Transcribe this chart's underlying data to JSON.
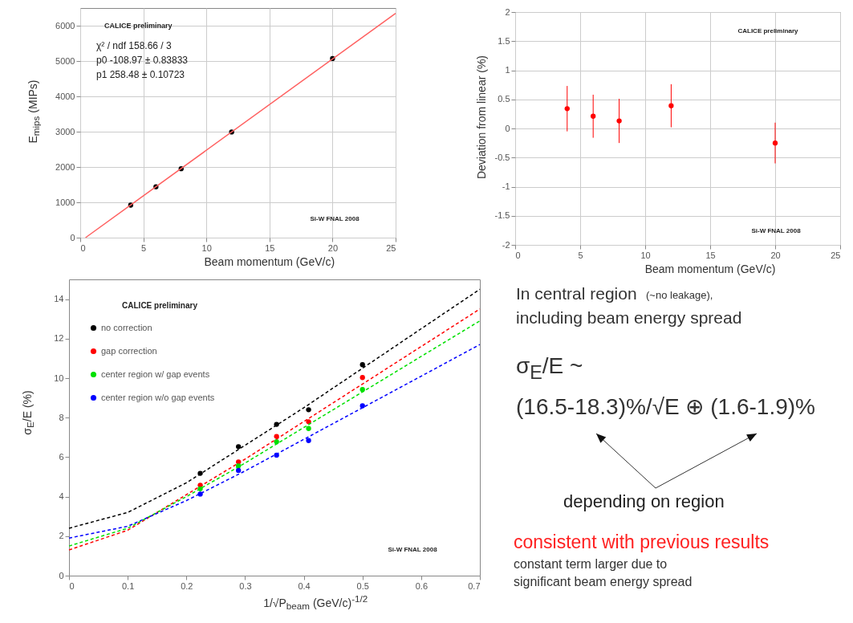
{
  "chart_data": [
    {
      "type": "scatter",
      "xlabel": "Beam momentum (GeV/c)",
      "ylabel": "E$_{mips}$ (MIPs)",
      "x": [
        4,
        6,
        8,
        12,
        20
      ],
      "xlim": [
        0,
        25
      ],
      "xticks": [
        0,
        5,
        10,
        15,
        20,
        25
      ],
      "ylim": [
        0,
        6500
      ],
      "yticks": [
        0,
        1000,
        2000,
        3000,
        4000,
        5000,
        6000
      ],
      "grid": true,
      "marker": "circle",
      "series": [
        {
          "color": "#000000",
          "values": [
            920,
            1440,
            1950,
            2990,
            5070
          ]
        },
        {
          "type": "line",
          "color": "#ff6060",
          "marker": "none",
          "x": [
            0.42,
            25
          ],
          "values": [
            0,
            6350
          ]
        }
      ],
      "annotations": [
        "CALICE preliminary",
        "χ² / ndf   158.66 / 3",
        "p0   -108.97 ± 0.83833",
        "p1   258.48 ± 0.10723",
        "Si-W FNAL 2008"
      ]
    },
    {
      "type": "scatter",
      "xlabel": "Beam momentum (GeV/c)",
      "ylabel": "Deviation from linear (%)",
      "x": [
        4,
        6,
        8,
        12,
        20
      ],
      "xlim": [
        0,
        25
      ],
      "xticks": [
        0,
        5,
        10,
        15,
        20,
        25
      ],
      "ylim": [
        -2,
        2
      ],
      "yticks": [
        -2,
        -1.5,
        -1,
        -0.5,
        0,
        0.5,
        1,
        1.5,
        2
      ],
      "grid": true,
      "marker": "circle",
      "series": [
        {
          "color": "#ff0000",
          "values": [
            0.34,
            0.21,
            0.13,
            0.39,
            -0.25
          ],
          "errors": [
            0.39,
            0.37,
            0.38,
            0.37,
            0.35
          ]
        }
      ],
      "annotations": [
        "CALICE preliminary",
        "Si-W FNAL 2008"
      ]
    },
    {
      "type": "scatter",
      "xlabel": "1/√P$_{beam}$ (GeV/c)$^{-1/2}$",
      "ylabel": "σ$_{E}$/E (%)",
      "x": [
        0.2236,
        0.2887,
        0.3536,
        0.4082,
        0.5
      ],
      "xlim": [
        0,
        0.7
      ],
      "xticks": [
        0,
        0.1,
        0.2,
        0.3,
        0.4,
        0.5,
        0.6,
        0.7
      ],
      "ylim": [
        0,
        15
      ],
      "yticks": [
        0,
        2,
        4,
        6,
        8,
        10,
        12,
        14
      ],
      "marker": "circle",
      "line_style": "dashed",
      "legend": "top left",
      "series": [
        {
          "name": "no correction",
          "color": "#000000",
          "values": [
            5.18,
            6.53,
            7.66,
            8.4,
            10.68
          ]
        },
        {
          "name": "gap correction",
          "color": "#ff0000",
          "values": [
            4.58,
            5.76,
            7.05,
            7.79,
            10.03
          ]
        },
        {
          "name": "center region w/ gap events",
          "color": "#00e000",
          "values": [
            4.4,
            5.56,
            6.78,
            7.45,
            9.42
          ]
        },
        {
          "name": "center region w/o gap events",
          "color": "#0000ff",
          "values": [
            4.13,
            5.33,
            6.1,
            6.84,
            8.6
          ]
        },
        {
          "type": "line",
          "color": "#000000",
          "marker": "none",
          "x": [
            0,
            0.1,
            0.2,
            0.3,
            0.4,
            0.5,
            0.6,
            0.7
          ],
          "values": [
            2.4,
            3.2,
            4.7,
            6.6,
            8.5,
            10.5,
            12.5,
            14.5
          ]
        },
        {
          "type": "line",
          "color": "#ff0000",
          "marker": "none",
          "x": [
            0,
            0.1,
            0.2,
            0.3,
            0.4,
            0.5,
            0.6,
            0.7
          ],
          "values": [
            1.3,
            2.3,
            4.1,
            5.9,
            7.8,
            9.7,
            11.6,
            13.5
          ]
        },
        {
          "type": "line",
          "color": "#00e000",
          "marker": "none",
          "x": [
            0,
            0.1,
            0.2,
            0.3,
            0.4,
            0.5,
            0.6,
            0.7
          ],
          "values": [
            1.5,
            2.4,
            4.0,
            5.7,
            7.5,
            9.3,
            11.1,
            12.9
          ]
        },
        {
          "type": "line",
          "color": "#0000ff",
          "marker": "none",
          "x": [
            0,
            0.1,
            0.2,
            0.3,
            0.4,
            0.5,
            0.6,
            0.7
          ],
          "values": [
            1.9,
            2.5,
            3.8,
            5.3,
            6.9,
            8.5,
            10.1,
            11.7
          ]
        }
      ],
      "annotations": [
        "CALICE preliminary",
        "Si-W FNAL 2008"
      ]
    },
    {
      "type": "other",
      "annotations": [
        "In central region",
        "(~no leakage),",
        "including beam energy spread",
        "σ$_{E}$/E ~",
        "(16.5-18.3)%/√E ⊕ (1.6-1.9)%",
        "depending on region",
        "consistent with previous results",
        "constant term larger due to",
        "significant beam energy spread"
      ]
    }
  ]
}
